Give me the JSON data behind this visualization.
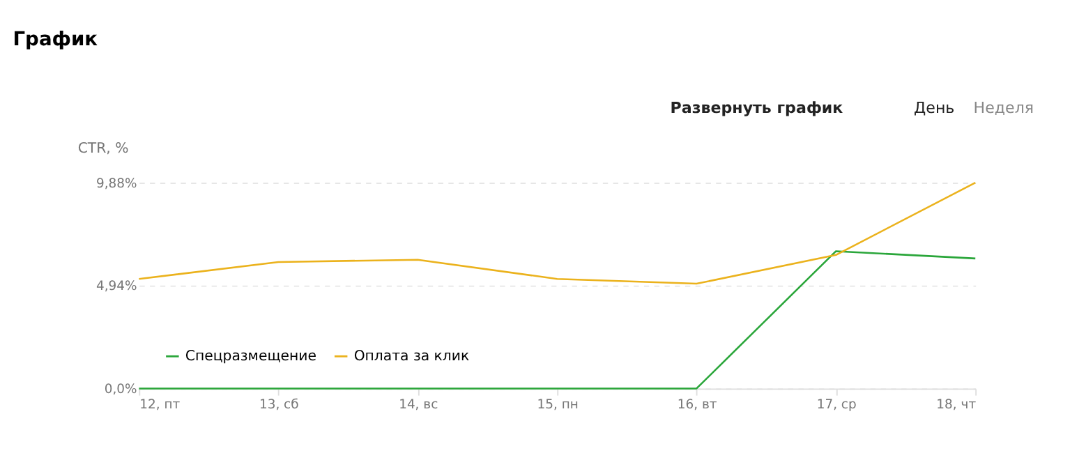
{
  "chart_data": {
    "type": "line",
    "title": "График",
    "ylabel": "CTR, %",
    "annotations": [
      "Развернуть график",
      "День",
      "Неделя"
    ],
    "categories": [
      "12, пт",
      "13, сб",
      "14, вс",
      "15, пн",
      "16, вт",
      "17, ср",
      "18, чт"
    ],
    "series": [
      {
        "name": "Спецразмещение",
        "color": "#2aa63a",
        "values": [
          0,
          0,
          0,
          0,
          0,
          6.59,
          6.24
        ]
      },
      {
        "name": "Оплата за клик",
        "color": "#ebb21c",
        "values": [
          5.26,
          6.07,
          6.18,
          5.26,
          5.03,
          6.41,
          9.88
        ]
      }
    ],
    "ylim": [
      0,
      9.88
    ],
    "yticks": [
      {
        "value": 0,
        "label": "0,0%"
      },
      {
        "value": 4.94,
        "label": "4,94%"
      },
      {
        "value": 9.88,
        "label": "9,88%"
      }
    ],
    "grid": "y",
    "legend": "bottom left",
    "marker": "none",
    "line_style": "solid"
  }
}
